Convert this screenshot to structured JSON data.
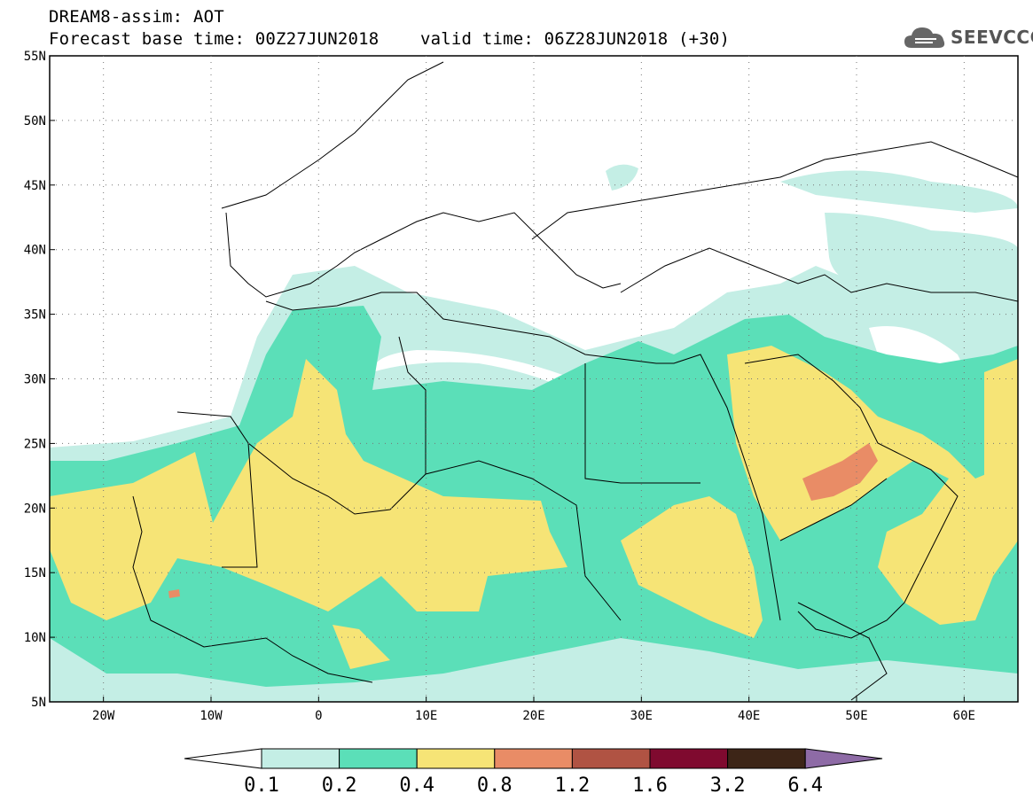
{
  "header": {
    "line1": "DREAM8-assim: AOT",
    "line2": "Forecast base time: 00Z27JUN2018    valid time: 06Z28JUN2018 (+30)"
  },
  "logo": {
    "text": "SEEVCCC",
    "icon": "cloud-icon"
  },
  "map": {
    "lon_range": [
      -25,
      65
    ],
    "lat_range": [
      5,
      55
    ],
    "lat_ticks": [
      {
        "value": 55,
        "label": "55N"
      },
      {
        "value": 50,
        "label": "50N"
      },
      {
        "value": 45,
        "label": "45N"
      },
      {
        "value": 40,
        "label": "40N"
      },
      {
        "value": 35,
        "label": "35N"
      },
      {
        "value": 30,
        "label": "30N"
      },
      {
        "value": 25,
        "label": "25N"
      },
      {
        "value": 20,
        "label": "20N"
      },
      {
        "value": 15,
        "label": "15N"
      },
      {
        "value": 10,
        "label": "10N"
      },
      {
        "value": 5,
        "label": "5N"
      }
    ],
    "lon_ticks": [
      {
        "value": -20,
        "label": "20W"
      },
      {
        "value": -10,
        "label": "10W"
      },
      {
        "value": 0,
        "label": "0"
      },
      {
        "value": 10,
        "label": "10E"
      },
      {
        "value": 20,
        "label": "20E"
      },
      {
        "value": 30,
        "label": "30E"
      },
      {
        "value": 40,
        "label": "40E"
      },
      {
        "value": 50,
        "label": "50E"
      },
      {
        "value": 60,
        "label": "60E"
      }
    ],
    "grid": true
  },
  "colorbar": {
    "labels": [
      "0.1",
      "0.2",
      "0.4",
      "0.8",
      "1.2",
      "1.6",
      "3.2",
      "6.4"
    ],
    "colors": [
      "#ffffff",
      "#c4eee5",
      "#5bdfb8",
      "#f6e476",
      "#e98c66",
      "#b05343",
      "#7f0a2f",
      "#3d2517",
      "#8e6ba6"
    ]
  }
}
